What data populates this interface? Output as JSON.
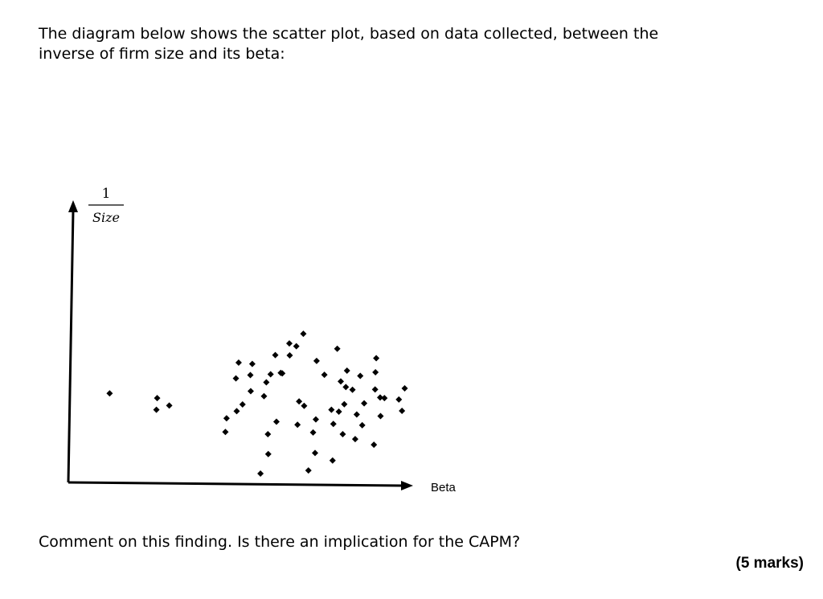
{
  "document": {
    "intro_line1": "The diagram below shows the scatter plot, based on data collected, between the",
    "intro_line2": "inverse of firm size and its beta:",
    "question": "Comment on this finding. Is there an implication for the CAPM?",
    "marks": "(5 marks)"
  },
  "chart_data": {
    "type": "scatter",
    "title": "",
    "xlabel": "Beta",
    "ylabel_numerator": "1",
    "ylabel_denominator": "Size",
    "xlim": [
      0,
      100
    ],
    "ylim": [
      0,
      100
    ],
    "grid": false,
    "legend": "none",
    "axis_ticks": false,
    "point_marker": "diamond",
    "point_color": "#000000",
    "points": [
      [
        36.2,
        30.4
      ],
      [
        24.0,
        32.1
      ],
      [
        39.3,
        27.7
      ],
      [
        36.0,
        26.2
      ],
      [
        66.5,
        45.9
      ],
      [
        57.1,
        43.2
      ],
      [
        65.3,
        39.0
      ],
      [
        64.2,
        36.1
      ],
      [
        63.6,
        31.1
      ],
      [
        60.2,
        32.9
      ],
      [
        58.1,
        28.1
      ],
      [
        56.6,
        25.7
      ],
      [
        54.0,
        23.1
      ],
      [
        53.7,
        18.2
      ],
      [
        56.4,
        37.5
      ],
      [
        60.1,
        38.7
      ],
      [
        60.6,
        42.7
      ],
      [
        67.9,
        39.5
      ],
      [
        70.2,
        45.8
      ],
      [
        70.1,
        50.1
      ],
      [
        71.9,
        49.1
      ],
      [
        73.7,
        53.6
      ],
      [
        68.3,
        39.3
      ],
      [
        77.1,
        43.8
      ],
      [
        79.1,
        38.8
      ],
      [
        82.4,
        48.2
      ],
      [
        83.3,
        36.4
      ],
      [
        84.9,
        40.3
      ],
      [
        84.6,
        34.4
      ],
      [
        88.3,
        38.4
      ],
      [
        86.3,
        33.4
      ],
      [
        92.2,
        39.7
      ],
      [
        92.4,
        44.8
      ],
      [
        93.4,
        30.6
      ],
      [
        76.7,
        10.6
      ],
      [
        76.2,
        18.0
      ],
      [
        75.0,
        4.3
      ],
      [
        76.9,
        22.7
      ],
      [
        72.2,
        20.8
      ],
      [
        64.6,
        17.4
      ],
      [
        64.7,
        10.2
      ],
      [
        62.7,
        3.2
      ],
      [
        73.9,
        27.6
      ],
      [
        72.6,
        29.2
      ],
      [
        66.8,
        21.9
      ],
      [
        82.8,
        25.5
      ],
      [
        84.2,
        28.2
      ],
      [
        87.4,
        24.5
      ],
      [
        81.4,
        21.1
      ],
      [
        80.9,
        26.2
      ],
      [
        83.8,
        17.4
      ],
      [
        81.2,
        7.9
      ],
      [
        88.8,
        20.6
      ],
      [
        89.3,
        28.5
      ],
      [
        87.0,
        15.6
      ],
      [
        91.8,
        13.6
      ],
      [
        93.5,
        23.9
      ],
      [
        98.2,
        29.9
      ],
      [
        94.5,
        30.4
      ],
      [
        99.0,
        25.8
      ],
      [
        99.7,
        33.9
      ],
      [
        92.1,
        33.5
      ]
    ]
  }
}
